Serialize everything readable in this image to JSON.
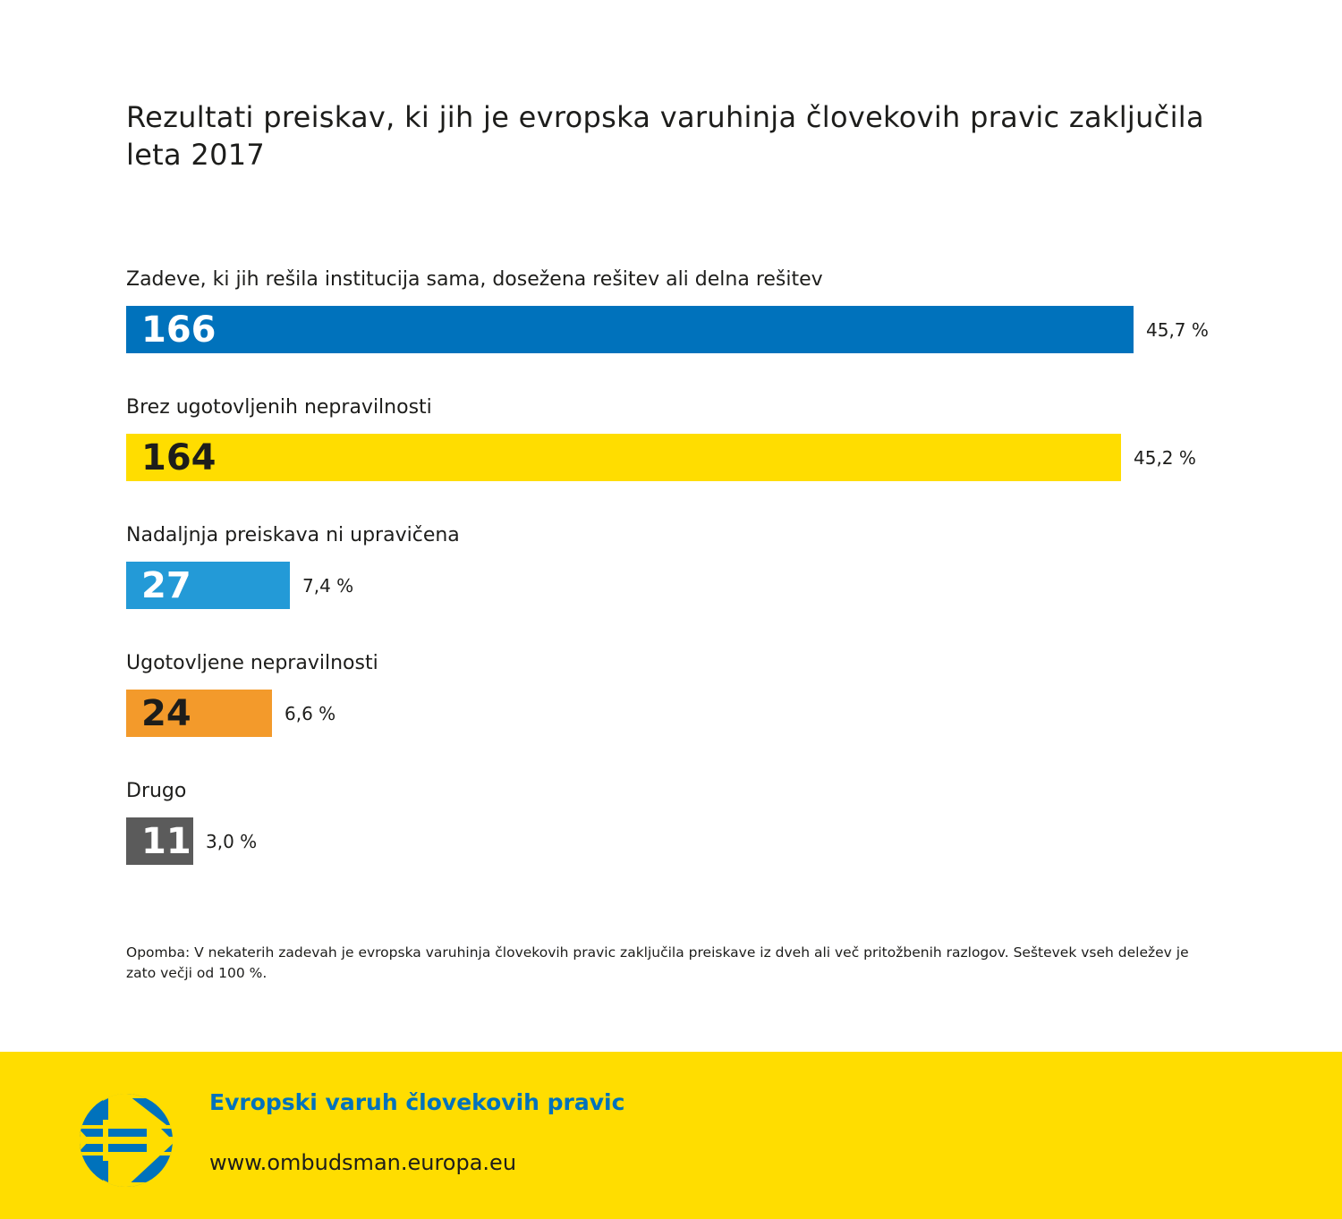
{
  "chart_data": {
    "type": "bar",
    "orientation": "horizontal",
    "title": "Rezultati preiskav, ki jih je evropska varuhinja človekovih pravic zaključila leta 2017",
    "categories": [
      "Zadeve, ki jih rešila institucija sama, dosežena rešitev ali delna rešitev",
      "Brez ugotovljenih nepravilnosti",
      "Nadaljnja preiskava ni upravičena",
      "Ugotovljene nepravilnosti",
      "Drugo"
    ],
    "values": [
      166,
      164,
      27,
      24,
      11
    ],
    "value_labels": [
      "166",
      "164",
      "27",
      "24",
      "11"
    ],
    "percent_labels": [
      "45,7 %",
      "45,2 %",
      "7,4 %",
      "6,6 %",
      "3,0 %"
    ],
    "colors": [
      "#0072bc",
      "#ffdd00",
      "#239ad7",
      "#f39a2b",
      "#5b5b5b"
    ],
    "value_text_colors": [
      "#ffffff",
      "#1d1d1b",
      "#ffffff",
      "#1d1d1b",
      "#ffffff"
    ],
    "xlim": [
      0,
      166
    ]
  },
  "note": "Opomba: V nekaterih zadevah je evropska varuhinja človekovih pravic zaključila preiskave iz dveh ali več pritožbenih razlogov. Seštevek vseh deležev je zato večji od 100 %.",
  "footer": {
    "name": "Evropski varuh človekovih pravic",
    "url": "www.ombudsman.europa.eu"
  }
}
